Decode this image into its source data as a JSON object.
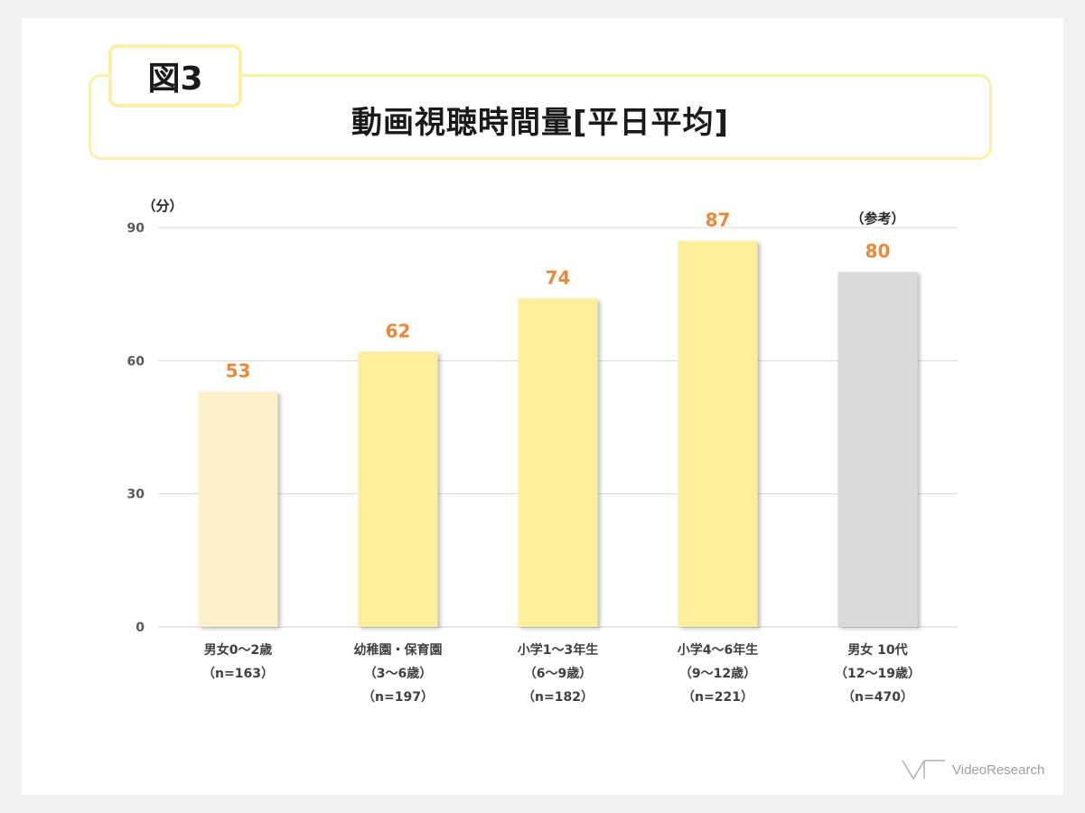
{
  "header": {
    "badge": "図3",
    "title": "動画視聴時間量[平日平均]"
  },
  "branding": {
    "logo_text": "VideoResearch"
  },
  "colors": {
    "value_label": "#e8893a",
    "bar_light": "#fdf0c8",
    "bar_yellow": "#fdee9b",
    "bar_gray": "#d9d9d9",
    "grid": "#d9d9d9",
    "frame": "#fbf0a8"
  },
  "chart_data": {
    "type": "bar",
    "title": "動画視聴時間量[平日平均]",
    "ylabel": "（分）",
    "ylim": [
      0,
      90
    ],
    "yticks": [
      0,
      30,
      60,
      90
    ],
    "grid": true,
    "categories": [
      {
        "lines": [
          "男女0〜2歳",
          "（n=163）"
        ],
        "value": 53,
        "color": "#fdf0c8",
        "note": ""
      },
      {
        "lines": [
          "幼稚園・保育園",
          "（3〜6歳）",
          "（n=197）"
        ],
        "value": 62,
        "color": "#fdee9b",
        "note": ""
      },
      {
        "lines": [
          "小学1〜3年生",
          "（6〜9歳）",
          "（n=182）"
        ],
        "value": 74,
        "color": "#fdee9b",
        "note": ""
      },
      {
        "lines": [
          "小学4〜6年生",
          "（9〜12歳）",
          "（n=221）"
        ],
        "value": 87,
        "color": "#fdee9b",
        "note": ""
      },
      {
        "lines": [
          "男女 10代",
          "（12〜19歳）",
          "（n=470）"
        ],
        "value": 80,
        "color": "#d9d9d9",
        "note": "（参考）"
      }
    ]
  }
}
